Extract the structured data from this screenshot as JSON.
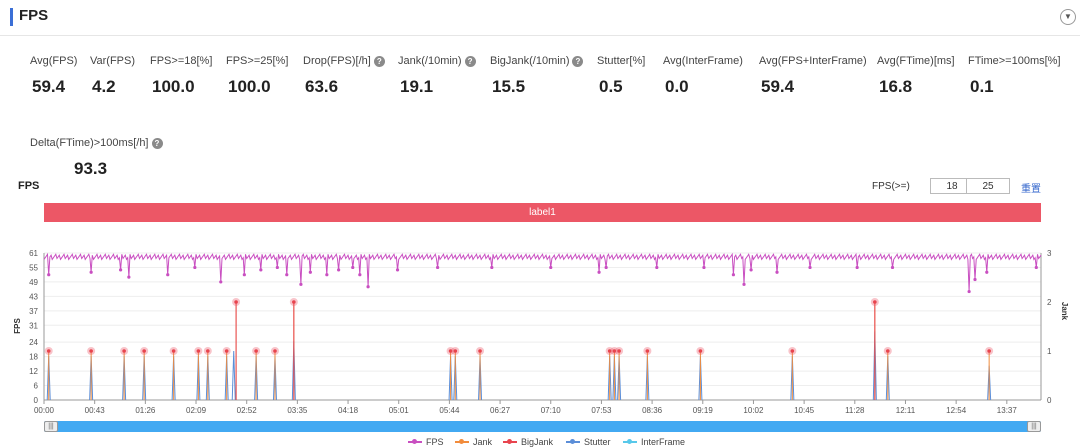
{
  "header": {
    "title": "FPS",
    "collapse_icon": "chevron-down-icon"
  },
  "stats": [
    {
      "label": "Avg(FPS)",
      "value": "59.4",
      "help": false
    },
    {
      "label": "Var(FPS)",
      "value": "4.2",
      "help": false
    },
    {
      "label": "FPS>=18[%]",
      "value": "100.0",
      "help": false
    },
    {
      "label": "FPS>=25[%]",
      "value": "100.0",
      "help": false
    },
    {
      "label": "Drop(FPS)[/h]",
      "value": "63.6",
      "help": true
    },
    {
      "label": "Jank(/10min)",
      "value": "19.1",
      "help": true
    },
    {
      "label": "BigJank(/10min)",
      "value": "15.5",
      "help": true
    },
    {
      "label": "Stutter[%]",
      "value": "0.5",
      "help": false
    },
    {
      "label": "Avg(InterFrame)",
      "value": "0.0",
      "help": false
    },
    {
      "label": "Avg(FPS+InterFrame)",
      "value": "59.4",
      "help": false
    },
    {
      "label": "Avg(FTime)[ms]",
      "value": "16.8",
      "help": false
    },
    {
      "label": "FTime>=100ms[%]",
      "value": "0.1",
      "help": false
    },
    {
      "label": "Delta(FTime)>100ms[/h]",
      "value": "93.3",
      "help": true
    }
  ],
  "help_glyph": "?",
  "chart_section": {
    "title": "FPS",
    "filter_label": "FPS(>=)",
    "filter_values": [
      "18",
      "25"
    ],
    "reset_label": "重置",
    "label_bar": "label1"
  },
  "chart_data": {
    "type": "line",
    "x_tick_labels": [
      "00:00",
      "00:43",
      "01:26",
      "02:09",
      "02:52",
      "03:35",
      "04:18",
      "05:01",
      "05:44",
      "06:27",
      "07:10",
      "07:53",
      "08:36",
      "09:19",
      "10:02",
      "10:45",
      "11:28",
      "12:11",
      "12:54",
      "13:37"
    ],
    "x_range_seconds": [
      0,
      846
    ],
    "y_left": {
      "label": "FPS",
      "ticks": [
        0,
        6,
        12,
        18,
        24,
        31,
        37,
        43,
        49,
        55,
        61
      ],
      "range": [
        0,
        61
      ]
    },
    "y_right": {
      "label": "Jank",
      "ticks": [
        0,
        1,
        2,
        3
      ],
      "range": [
        0,
        3
      ]
    },
    "colors": {
      "FPS": "#c94fc1",
      "Jank": "#f28c3c",
      "BigJank": "#e8444e",
      "Stutter": "#5b8ed8",
      "InterFrame": "#58c8ea"
    },
    "fps_baseline": 59.4,
    "fps_drops": [
      {
        "t": 4,
        "v": 52
      },
      {
        "t": 40,
        "v": 53
      },
      {
        "t": 65,
        "v": 54
      },
      {
        "t": 72,
        "v": 51
      },
      {
        "t": 105,
        "v": 52
      },
      {
        "t": 128,
        "v": 55
      },
      {
        "t": 150,
        "v": 49
      },
      {
        "t": 170,
        "v": 52
      },
      {
        "t": 184,
        "v": 54
      },
      {
        "t": 198,
        "v": 55
      },
      {
        "t": 206,
        "v": 52
      },
      {
        "t": 218,
        "v": 48
      },
      {
        "t": 226,
        "v": 53
      },
      {
        "t": 240,
        "v": 52
      },
      {
        "t": 250,
        "v": 54
      },
      {
        "t": 262,
        "v": 55
      },
      {
        "t": 268,
        "v": 52
      },
      {
        "t": 275,
        "v": 47
      },
      {
        "t": 300,
        "v": 54
      },
      {
        "t": 334,
        "v": 55
      },
      {
        "t": 380,
        "v": 55
      },
      {
        "t": 430,
        "v": 55
      },
      {
        "t": 471,
        "v": 53
      },
      {
        "t": 477,
        "v": 55
      },
      {
        "t": 520,
        "v": 55
      },
      {
        "t": 560,
        "v": 55
      },
      {
        "t": 585,
        "v": 52
      },
      {
        "t": 594,
        "v": 48
      },
      {
        "t": 600,
        "v": 54
      },
      {
        "t": 622,
        "v": 53
      },
      {
        "t": 650,
        "v": 55
      },
      {
        "t": 690,
        "v": 55
      },
      {
        "t": 720,
        "v": 55
      },
      {
        "t": 785,
        "v": 45
      },
      {
        "t": 790,
        "v": 50
      },
      {
        "t": 800,
        "v": 53
      },
      {
        "t": 842,
        "v": 55
      }
    ],
    "jank_events": [
      {
        "t": 4,
        "v": 1
      },
      {
        "t": 40,
        "v": 1
      },
      {
        "t": 68,
        "v": 1
      },
      {
        "t": 85,
        "v": 1
      },
      {
        "t": 110,
        "v": 1
      },
      {
        "t": 131,
        "v": 1
      },
      {
        "t": 139,
        "v": 1
      },
      {
        "t": 155,
        "v": 1
      },
      {
        "t": 163,
        "v": 2
      },
      {
        "t": 180,
        "v": 1
      },
      {
        "t": 196,
        "v": 1
      },
      {
        "t": 212,
        "v": 2
      },
      {
        "t": 345,
        "v": 1
      },
      {
        "t": 349,
        "v": 1
      },
      {
        "t": 370,
        "v": 1
      },
      {
        "t": 480,
        "v": 1
      },
      {
        "t": 484,
        "v": 1
      },
      {
        "t": 488,
        "v": 1
      },
      {
        "t": 512,
        "v": 1
      },
      {
        "t": 557,
        "v": 1
      },
      {
        "t": 635,
        "v": 1
      },
      {
        "t": 705,
        "v": 2
      },
      {
        "t": 716,
        "v": 1
      },
      {
        "t": 802,
        "v": 1
      }
    ],
    "bigjank_events": [
      {
        "t": 163,
        "v": 2
      },
      {
        "t": 212,
        "v": 2
      },
      {
        "t": 705,
        "v": 2
      }
    ],
    "stutter_events": [
      {
        "t": 4,
        "v": 0.9
      },
      {
        "t": 40,
        "v": 0.9
      },
      {
        "t": 68,
        "v": 0.9
      },
      {
        "t": 85,
        "v": 0.9
      },
      {
        "t": 110,
        "v": 0.9
      },
      {
        "t": 131,
        "v": 0.9
      },
      {
        "t": 139,
        "v": 0.9
      },
      {
        "t": 155,
        "v": 0.9
      },
      {
        "t": 161,
        "v": 1.0
      },
      {
        "t": 180,
        "v": 0.9
      },
      {
        "t": 196,
        "v": 0.9
      },
      {
        "t": 212,
        "v": 1.2
      },
      {
        "t": 345,
        "v": 0.9
      },
      {
        "t": 349,
        "v": 0.9
      },
      {
        "t": 370,
        "v": 0.9
      },
      {
        "t": 480,
        "v": 0.9
      },
      {
        "t": 484,
        "v": 0.9
      },
      {
        "t": 488,
        "v": 0.9
      },
      {
        "t": 512,
        "v": 0.9
      },
      {
        "t": 557,
        "v": 0.9
      },
      {
        "t": 635,
        "v": 0.9
      },
      {
        "t": 705,
        "v": 1.4
      },
      {
        "t": 716,
        "v": 0.9
      },
      {
        "t": 802,
        "v": 0.7
      }
    ],
    "legend": [
      "FPS",
      "Jank",
      "BigJank",
      "Stutter",
      "InterFrame"
    ]
  }
}
